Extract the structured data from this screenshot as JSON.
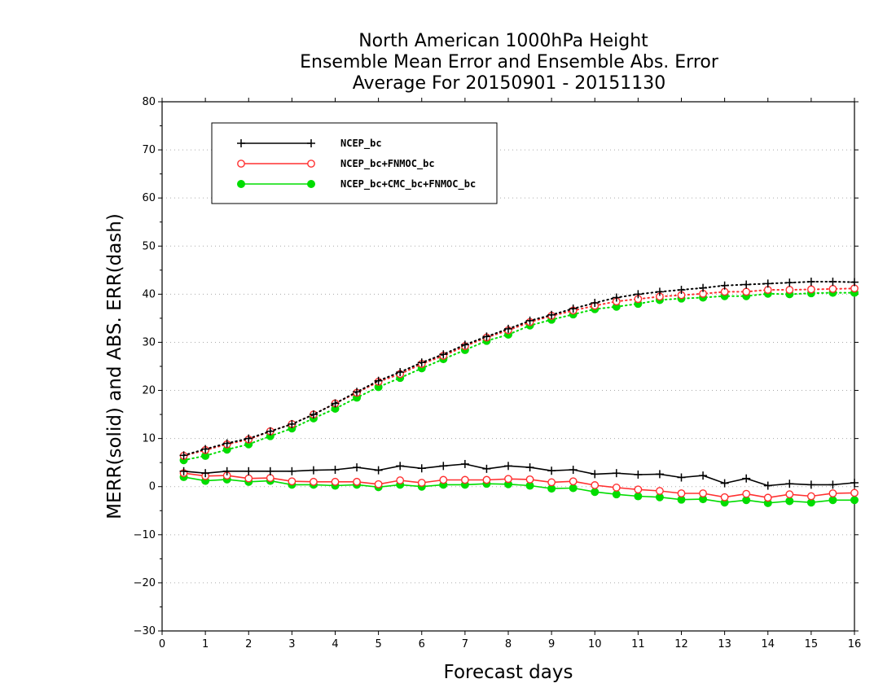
{
  "chart_data": {
    "type": "line",
    "title": [
      "North American 1000hPa Height",
      "Ensemble Mean Error and Ensemble Abs. Error",
      "Average For 20150901 - 20151130"
    ],
    "xlabel": "Forecast days",
    "ylabel": "MERR(solid) and ABS. ERR(dash)",
    "xlim": [
      0,
      16
    ],
    "ylim": [
      -30,
      80
    ],
    "xticks": [
      "0",
      "1",
      "2",
      "3",
      "4",
      "5",
      "6",
      "7",
      "8",
      "9",
      "10",
      "11",
      "12",
      "13",
      "14",
      "15",
      "16"
    ],
    "yticks": [
      "−30",
      "−20",
      "−10",
      "0",
      "10",
      "20",
      "30",
      "40",
      "50",
      "60",
      "70",
      "80"
    ],
    "grid": "horizontal dotted",
    "legend_position": "top-left",
    "x": [
      0.5,
      1,
      1.5,
      2,
      2.5,
      3,
      3.5,
      4,
      4.5,
      5,
      5.5,
      6,
      6.5,
      7,
      7.5,
      8,
      8.5,
      9,
      9.5,
      10,
      10.5,
      11,
      11.5,
      12,
      12.5,
      13,
      13.5,
      14,
      14.5,
      15,
      15.5,
      16
    ],
    "series": [
      {
        "name": "NCEP_bc",
        "color": "#000000",
        "marker": "plus",
        "merr": [
          3.2,
          2.8,
          3.2,
          3.2,
          3.2,
          3.2,
          3.4,
          3.5,
          4.0,
          3.4,
          4.3,
          3.8,
          4.3,
          4.7,
          3.7,
          4.3,
          4.0,
          3.3,
          3.5,
          2.6,
          2.8,
          2.5,
          2.6,
          1.9,
          2.3,
          0.7,
          1.7,
          0.2,
          0.6,
          0.4,
          0.4,
          0.8
        ],
        "abs_err": [
          6.5,
          7.8,
          9.0,
          10.0,
          11.5,
          13.0,
          15.0,
          17.3,
          19.7,
          22.0,
          23.8,
          25.8,
          27.5,
          29.5,
          31.2,
          32.8,
          34.5,
          35.7,
          37.0,
          38.2,
          39.3,
          40.0,
          40.5,
          40.9,
          41.3,
          41.8,
          42.0,
          42.2,
          42.4,
          42.6,
          42.6,
          42.5
        ]
      },
      {
        "name": "NCEP_bc+FNMOC_bc",
        "color": "#ff3030",
        "marker": "open-circle",
        "merr": [
          2.8,
          2.2,
          2.3,
          1.7,
          1.8,
          1.1,
          1.0,
          1.0,
          1.0,
          0.5,
          1.3,
          0.8,
          1.4,
          1.4,
          1.4,
          1.6,
          1.5,
          0.9,
          1.1,
          0.3,
          -0.2,
          -0.6,
          -0.9,
          -1.4,
          -1.4,
          -2.2,
          -1.5,
          -2.3,
          -1.6,
          -2.0,
          -1.4,
          -1.3
        ],
        "abs_err": [
          6.4,
          7.6,
          8.8,
          9.8,
          11.5,
          13.0,
          15.0,
          17.3,
          19.5,
          21.8,
          23.4,
          25.5,
          27.2,
          29.2,
          31.0,
          32.5,
          34.2,
          35.5,
          36.6,
          37.6,
          38.5,
          39.0,
          39.5,
          39.8,
          40.1,
          40.5,
          40.5,
          40.9,
          40.9,
          41.0,
          41.1,
          41.2
        ]
      },
      {
        "name": "NCEP_bc+CMC_bc+FNMOC_bc",
        "color": "#00dd00",
        "marker": "filled-circle",
        "merr": [
          2.0,
          1.2,
          1.5,
          1.0,
          1.2,
          0.4,
          0.4,
          0.2,
          0.4,
          -0.1,
          0.4,
          0.0,
          0.4,
          0.4,
          0.6,
          0.5,
          0.2,
          -0.4,
          -0.3,
          -1.1,
          -1.6,
          -2.0,
          -2.2,
          -2.7,
          -2.6,
          -3.3,
          -2.8,
          -3.4,
          -3.0,
          -3.3,
          -2.8,
          -2.8
        ],
        "abs_err": [
          5.5,
          6.4,
          7.7,
          8.8,
          10.5,
          12.1,
          14.2,
          16.2,
          18.5,
          20.7,
          22.6,
          24.6,
          26.5,
          28.4,
          30.3,
          31.6,
          33.5,
          34.7,
          35.8,
          36.9,
          37.4,
          38.0,
          38.8,
          39.1,
          39.3,
          39.6,
          39.6,
          40.1,
          40.0,
          40.2,
          40.3,
          40.3
        ]
      }
    ]
  }
}
